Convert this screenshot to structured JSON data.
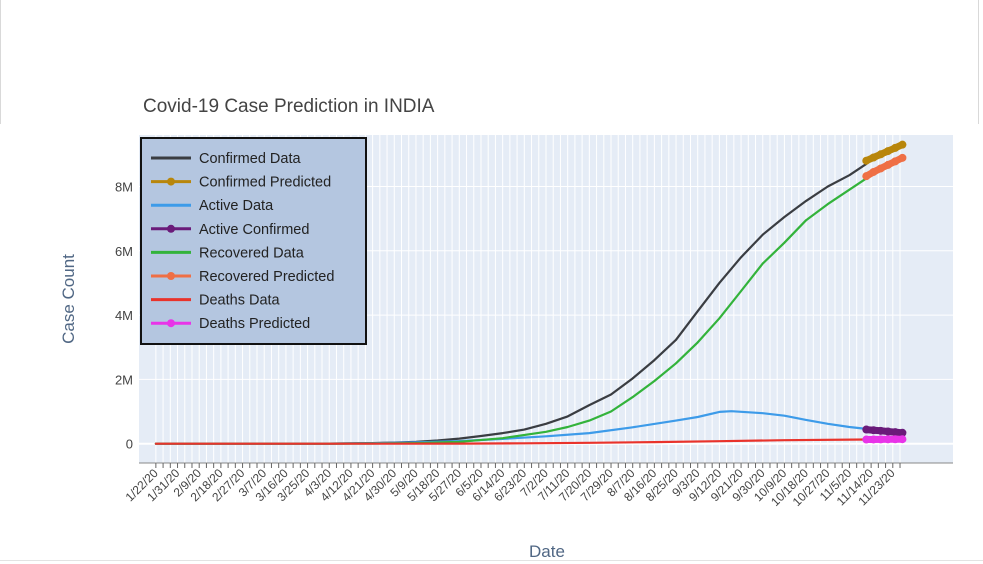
{
  "chart_data": {
    "type": "line",
    "title": "Covid-19 Case Prediction in INDIA",
    "xlabel": "Date",
    "ylabel": "Case Count",
    "x_tick_labels": [
      "1/22/20",
      "1/31/20",
      "2/9/20",
      "2/18/20",
      "2/27/20",
      "3/7/20",
      "3/16/20",
      "3/25/20",
      "4/3/20",
      "4/12/20",
      "4/21/20",
      "4/30/20",
      "5/9/20",
      "5/18/20",
      "5/27/20",
      "6/5/20",
      "6/14/20",
      "6/23/20",
      "7/2/20",
      "7/11/20",
      "7/20/20",
      "7/29/20",
      "8/7/20",
      "8/16/20",
      "8/25/20",
      "9/3/20",
      "9/12/20",
      "9/21/20",
      "9/30/20",
      "10/9/20",
      "10/18/20",
      "10/27/20",
      "11/5/20",
      "11/14/20",
      "11/23/20"
    ],
    "y_ticks": [
      0,
      2000000,
      4000000,
      6000000,
      8000000
    ],
    "y_tick_labels": [
      "0",
      "2M",
      "4M",
      "6M",
      "8M"
    ],
    "ylim": [
      -600000,
      9600000
    ],
    "grid": true,
    "legend_position": "top-left",
    "series": [
      {
        "name": "Confirmed Data",
        "color": "#3a3d42",
        "mode": "lines",
        "x": [
          "1/22/20",
          "2/27/20",
          "4/3/20",
          "4/21/20",
          "4/30/20",
          "5/9/20",
          "5/18/20",
          "5/27/20",
          "6/5/20",
          "6/14/20",
          "6/23/20",
          "7/2/20",
          "7/11/20",
          "7/20/20",
          "7/29/20",
          "8/7/20",
          "8/16/20",
          "8/25/20",
          "9/3/20",
          "9/12/20",
          "9/21/20",
          "9/30/20",
          "10/9/20",
          "10/18/20",
          "10/27/20",
          "11/5/20",
          "11/12/20"
        ],
        "y": [
          0,
          0,
          2500,
          20000,
          35000,
          60000,
          100000,
          160000,
          240000,
          330000,
          440000,
          620000,
          850000,
          1200000,
          1530000,
          2030000,
          2600000,
          3230000,
          4120000,
          5000000,
          5800000,
          6500000,
          7050000,
          7550000,
          8000000,
          8350000,
          8700000
        ]
      },
      {
        "name": "Confirmed Predicted",
        "color": "#b8860b",
        "mode": "lines+markers",
        "x": [
          "11/12/20",
          "11/15/20",
          "11/18/20",
          "11/21/20",
          "11/24/20",
          "11/27/20"
        ],
        "y": [
          8800000,
          8900000,
          9000000,
          9100000,
          9200000,
          9300000
        ]
      },
      {
        "name": "Active Data",
        "color": "#3d9be9",
        "mode": "lines",
        "x": [
          "1/22/20",
          "2/27/20",
          "4/3/20",
          "4/21/20",
          "5/9/20",
          "5/27/20",
          "6/14/20",
          "7/2/20",
          "7/20/20",
          "8/7/20",
          "8/25/20",
          "9/3/20",
          "9/12/20",
          "9/17/20",
          "9/30/20",
          "10/9/20",
          "10/18/20",
          "10/27/20",
          "11/5/20",
          "11/12/20"
        ],
        "y": [
          0,
          0,
          2000,
          15000,
          40000,
          80000,
          150000,
          230000,
          330000,
          510000,
          720000,
          830000,
          990000,
          1010000,
          950000,
          870000,
          740000,
          620000,
          520000,
          460000
        ]
      },
      {
        "name": "Active Confirmed",
        "color": "#6a1b7a",
        "mode": "lines+markers",
        "x": [
          "11/12/20",
          "11/15/20",
          "11/18/20",
          "11/21/20",
          "11/24/20",
          "11/27/20"
        ],
        "y": [
          440000,
          420000,
          400000,
          380000,
          360000,
          340000
        ]
      },
      {
        "name": "Recovered Data",
        "color": "#33b33b",
        "mode": "lines",
        "x": [
          "1/22/20",
          "2/27/20",
          "4/3/20",
          "4/21/20",
          "5/9/20",
          "5/27/20",
          "6/14/20",
          "7/2/20",
          "7/11/20",
          "7/20/20",
          "7/29/20",
          "8/7/20",
          "8/16/20",
          "8/25/20",
          "9/3/20",
          "9/12/20",
          "9/21/20",
          "9/30/20",
          "10/9/20",
          "10/18/20",
          "10/27/20",
          "11/5/20",
          "11/12/20"
        ],
        "y": [
          0,
          0,
          200,
          5000,
          20000,
          60000,
          170000,
          370000,
          520000,
          720000,
          1000000,
          1450000,
          1950000,
          2500000,
          3150000,
          3900000,
          4750000,
          5600000,
          6250000,
          6950000,
          7450000,
          7900000,
          8250000
        ]
      },
      {
        "name": "Recovered Predicted",
        "color": "#ef6f45",
        "mode": "lines+markers",
        "x": [
          "11/12/20",
          "11/15/20",
          "11/18/20",
          "11/21/20",
          "11/24/20",
          "11/27/20"
        ],
        "y": [
          8320000,
          8450000,
          8560000,
          8670000,
          8780000,
          8890000
        ]
      },
      {
        "name": "Deaths Data",
        "color": "#e9332b",
        "mode": "lines",
        "x": [
          "1/22/20",
          "3/16/20",
          "4/21/20",
          "5/27/20",
          "6/23/20",
          "7/20/20",
          "8/16/20",
          "9/12/20",
          "10/9/20",
          "11/12/20"
        ],
        "y": [
          0,
          0,
          500,
          4500,
          14000,
          28000,
          50000,
          77000,
          108000,
          130000
        ],
        "x_end": "11/12/20"
      },
      {
        "name": "Deaths Predicted",
        "color": "#e834e8",
        "mode": "lines+markers",
        "x": [
          "11/12/20",
          "11/15/20",
          "11/18/20",
          "11/21/20",
          "11/24/20",
          "11/27/20"
        ],
        "y": [
          130000,
          132000,
          134000,
          136000,
          138000,
          140000
        ]
      }
    ]
  }
}
